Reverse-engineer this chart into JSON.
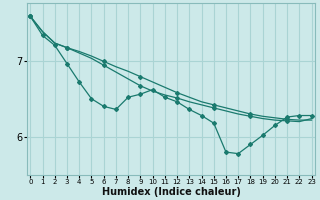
{
  "xlabel": "Humidex (Indice chaleur)",
  "bg_color": "#cce9e9",
  "grid_color": "#aad4d4",
  "line_color": "#1a7a6e",
  "xlim": [
    -0.3,
    23.3
  ],
  "ylim": [
    5.5,
    7.75
  ],
  "yticks": [
    6,
    7
  ],
  "xticks": [
    0,
    1,
    2,
    3,
    4,
    5,
    6,
    7,
    8,
    9,
    10,
    11,
    12,
    13,
    14,
    15,
    16,
    17,
    18,
    19,
    20,
    21,
    22,
    23
  ],
  "line1_x": [
    0,
    1,
    2,
    3,
    4,
    5,
    6,
    7,
    8,
    9,
    10,
    11,
    12,
    13,
    14,
    15,
    16,
    17,
    18,
    19,
    20,
    21,
    22,
    23
  ],
  "line1_y": [
    7.58,
    7.38,
    7.23,
    7.17,
    7.12,
    7.06,
    6.99,
    6.92,
    6.86,
    6.79,
    6.72,
    6.65,
    6.58,
    6.52,
    6.46,
    6.42,
    6.38,
    6.34,
    6.3,
    6.27,
    6.25,
    6.23,
    6.22,
    6.22
  ],
  "line2_x": [
    0,
    1,
    2,
    3,
    4,
    5,
    6,
    7,
    8,
    9,
    10,
    11,
    12,
    13,
    14,
    15,
    16,
    17,
    18,
    19,
    20,
    21,
    22,
    23
  ],
  "line2_y": [
    7.58,
    7.38,
    7.23,
    7.17,
    7.1,
    7.03,
    6.94,
    6.85,
    6.76,
    6.67,
    6.6,
    6.55,
    6.51,
    6.46,
    6.42,
    6.38,
    6.34,
    6.3,
    6.27,
    6.24,
    6.22,
    6.21,
    6.2,
    6.24
  ],
  "line3_x": [
    0,
    1,
    2,
    3,
    4,
    5,
    6,
    7,
    8,
    9,
    10,
    11,
    12,
    13,
    14,
    15,
    16,
    17,
    18,
    19,
    20,
    21,
    22,
    23
  ],
  "line3_y": [
    7.58,
    7.33,
    7.2,
    6.96,
    6.72,
    6.5,
    6.4,
    6.36,
    6.52,
    6.56,
    6.62,
    6.52,
    6.46,
    6.36,
    6.28,
    6.18,
    5.8,
    5.78,
    5.9,
    6.02,
    6.15,
    6.26,
    6.28,
    6.28
  ]
}
